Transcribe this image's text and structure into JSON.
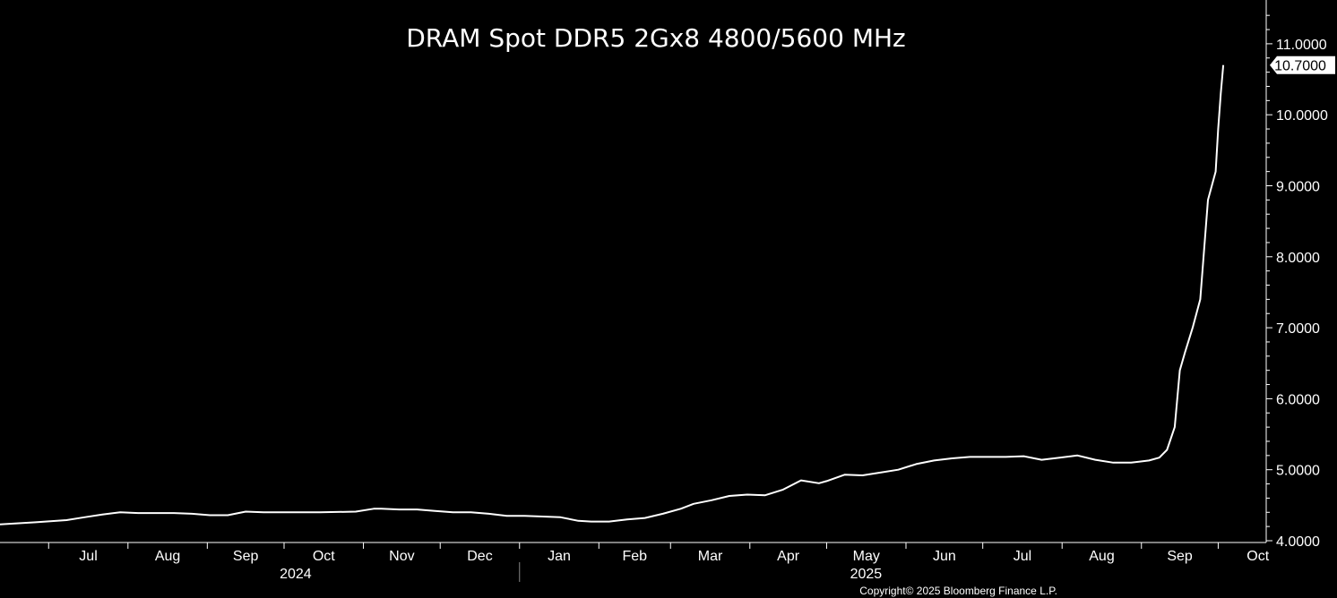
{
  "chart_data": {
    "type": "line",
    "title": "DRAM Spot DDR5 2Gx8 4800/5600 MHz",
    "xlabel": "",
    "ylabel": "",
    "ylim": [
      4.0,
      11.5
    ],
    "grid": false,
    "y_ticks": [
      "4.0000",
      "5.0000",
      "6.0000",
      "7.0000",
      "8.0000",
      "9.0000",
      "10.0000",
      "11.0000"
    ],
    "y_tick_values": [
      4,
      5,
      6,
      7,
      8,
      9,
      10,
      11
    ],
    "month_labels": [
      "Jul",
      "Aug",
      "Sep",
      "Oct",
      "Nov",
      "Dec",
      "Jan",
      "Feb",
      "Mar",
      "Apr",
      "May",
      "Jun",
      "Jul",
      "Aug",
      "Sep",
      "Oct"
    ],
    "year_labels": [
      "2024",
      "2025"
    ],
    "last_value_label": "10.7000",
    "series": [
      {
        "x": [
          "2024-06-12",
          "2024-06-26",
          "2024-07-08",
          "2024-07-15",
          "2024-07-22",
          "2024-07-29",
          "2024-08-05",
          "2024-08-12",
          "2024-08-19",
          "2024-08-26",
          "2024-09-02",
          "2024-09-09",
          "2024-09-16",
          "2024-09-23",
          "2024-09-27",
          "2024-10-01",
          "2024-10-15",
          "2024-10-29",
          "2024-11-05",
          "2024-11-08",
          "2024-11-15",
          "2024-11-22",
          "2024-11-29",
          "2024-12-06",
          "2024-12-13",
          "2024-12-20",
          "2024-12-27",
          "2025-01-03",
          "2025-01-10",
          "2025-01-17",
          "2025-01-24",
          "2025-01-29",
          "2025-02-05",
          "2025-02-12",
          "2025-02-19",
          "2025-02-26",
          "2025-03-05",
          "2025-03-10",
          "2025-03-17",
          "2025-03-24",
          "2025-03-31",
          "2025-04-07",
          "2025-04-14",
          "2025-04-21",
          "2025-04-28",
          "2025-05-01",
          "2025-05-08",
          "2025-05-15",
          "2025-05-22",
          "2025-05-29",
          "2025-06-05",
          "2025-06-12",
          "2025-06-19",
          "2025-06-26",
          "2025-07-03",
          "2025-07-10",
          "2025-07-17",
          "2025-07-24",
          "2025-07-31",
          "2025-08-07",
          "2025-08-14",
          "2025-08-21",
          "2025-08-28",
          "2025-09-04",
          "2025-09-08",
          "2025-09-11",
          "2025-09-14",
          "2025-09-16",
          "2025-09-18",
          "2025-09-21",
          "2025-09-24",
          "2025-09-27",
          "2025-09-30",
          "2025-10-01",
          "2025-10-02",
          "2025-10-03"
        ],
        "y": [
          4.23,
          4.26,
          4.29,
          4.33,
          4.37,
          4.4,
          4.39,
          4.39,
          4.39,
          4.38,
          4.36,
          4.36,
          4.41,
          4.4,
          4.4,
          4.4,
          4.4,
          4.41,
          4.45,
          4.45,
          4.44,
          4.44,
          4.42,
          4.4,
          4.4,
          4.38,
          4.35,
          4.35,
          4.34,
          4.33,
          4.28,
          4.27,
          4.27,
          4.3,
          4.32,
          4.38,
          4.45,
          4.52,
          4.57,
          4.63,
          4.65,
          4.64,
          4.72,
          4.85,
          4.81,
          4.84,
          4.93,
          4.92,
          4.96,
          5.0,
          5.08,
          5.13,
          5.16,
          5.18,
          5.18,
          5.18,
          5.19,
          5.14,
          5.17,
          5.2,
          5.14,
          5.1,
          5.1,
          5.13,
          5.17,
          5.28,
          5.6,
          6.4,
          6.65,
          7.0,
          7.4,
          8.8,
          9.2,
          9.8,
          10.3,
          10.7
        ]
      }
    ]
  },
  "footer": {
    "copyright": "Copyright© 2025 Bloomberg Finance L.P."
  },
  "colors": {
    "background": "#000000",
    "line": "#ffffff",
    "text": "#ffffff",
    "label_bg": "#ffffff",
    "label_text": "#000000"
  }
}
